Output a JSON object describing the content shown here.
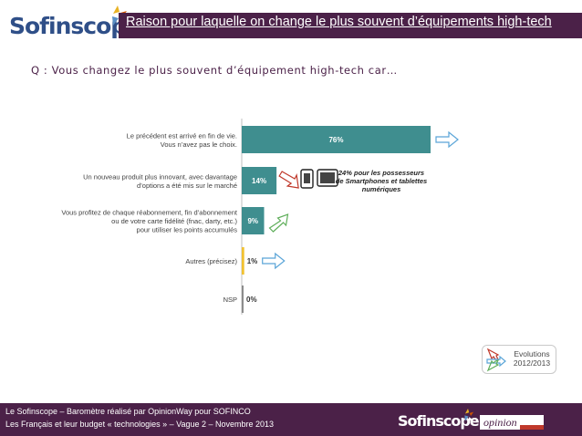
{
  "header": {
    "brand": "Sofinscope",
    "title": "Raison pour laquelle on change le plus souvent d’équipements high-tech"
  },
  "question": "Q : Vous changez le plus souvent d’équipement high-tech car…",
  "colors": {
    "bar_teal": "#3f8e8f",
    "bar_yellow": "#f1c232",
    "bar_gray": "#8c8c8c",
    "header_purple": "#4b2148",
    "arrow_blue": "#5aa5d8",
    "arrow_red": "#c0392b",
    "arrow_green": "#5fae5a"
  },
  "chart_data": {
    "type": "bar",
    "orientation": "horizontal",
    "title": "Raison pour laquelle on change le plus souvent d’équipements high-tech",
    "categories": [
      [
        "Le précédent est arrivé en fin de vie.",
        "Vous n’avez pas le choix."
      ],
      [
        "Un nouveau produit  plus innovant, avec davantage",
        "d’options a été mis sur le marché"
      ],
      [
        "Vous profitez de chaque réabonnement, fin d’abonnement",
        "ou de votre carte fidélité (fnac, darty, etc.)",
        "pour utiliser les points accumulés"
      ],
      [
        "Autres (précisez)"
      ],
      [
        "NSP"
      ]
    ],
    "values": [
      76,
      14,
      9,
      1,
      0
    ],
    "value_labels": [
      "76%",
      "14%",
      "9%",
      "1%",
      "0%"
    ],
    "value_label_inside": [
      true,
      true,
      true,
      false,
      false
    ],
    "bar_colors": [
      "#3f8e8f",
      "#3f8e8f",
      "#3f8e8f",
      "#f1c232",
      "#8c8c8c"
    ],
    "evolution_icons": [
      "stable",
      "down",
      "up",
      "stable",
      "none"
    ],
    "xlim": [
      0,
      76
    ],
    "grid": false,
    "annotation": [
      "24% pour les possesseurs",
      "de Smartphones et tablettes",
      "numériques"
    ]
  },
  "legend": {
    "label_line1": "Evolutions",
    "label_line2": "2012/2013"
  },
  "footer": {
    "line1": "Le Sofinscope – Baromètre réalisé par OpinionWay pour SOFINCO",
    "line2": "Les Français et leur budget « technologies » – Vague 2 – Novembre 2013",
    "brand": "Sofinscope",
    "partner": "opinion"
  }
}
